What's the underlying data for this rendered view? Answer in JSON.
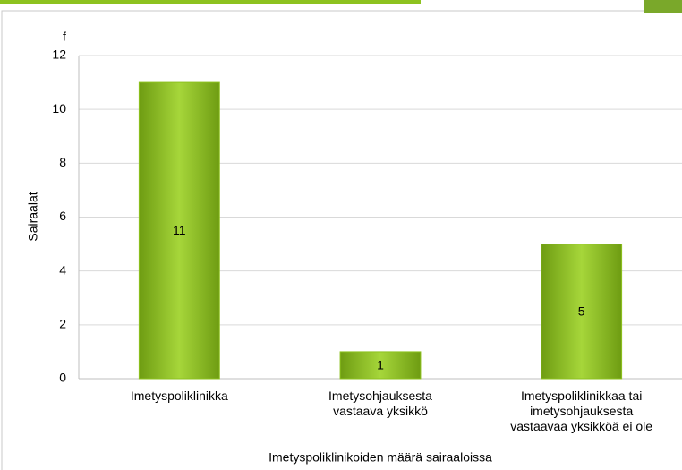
{
  "chart_data": {
    "type": "bar",
    "categories": [
      "Imetyspoliklinikka",
      "Imetysohjauksesta vastaava yksikkö",
      "Imetyspoliklinikkaa tai imetysohjauksesta vastaavaa yksikköä ei ole"
    ],
    "values": [
      11,
      1,
      5
    ],
    "color": "#8dc21f",
    "y_label": "Sairaalat",
    "y_unit": "f",
    "x_label": "Imetyspoliklinikoiden määrä sairaaloissa",
    "ylim": [
      0,
      12
    ],
    "yticks": [
      0,
      2,
      4,
      6,
      8,
      10,
      12
    ],
    "grid": true
  }
}
